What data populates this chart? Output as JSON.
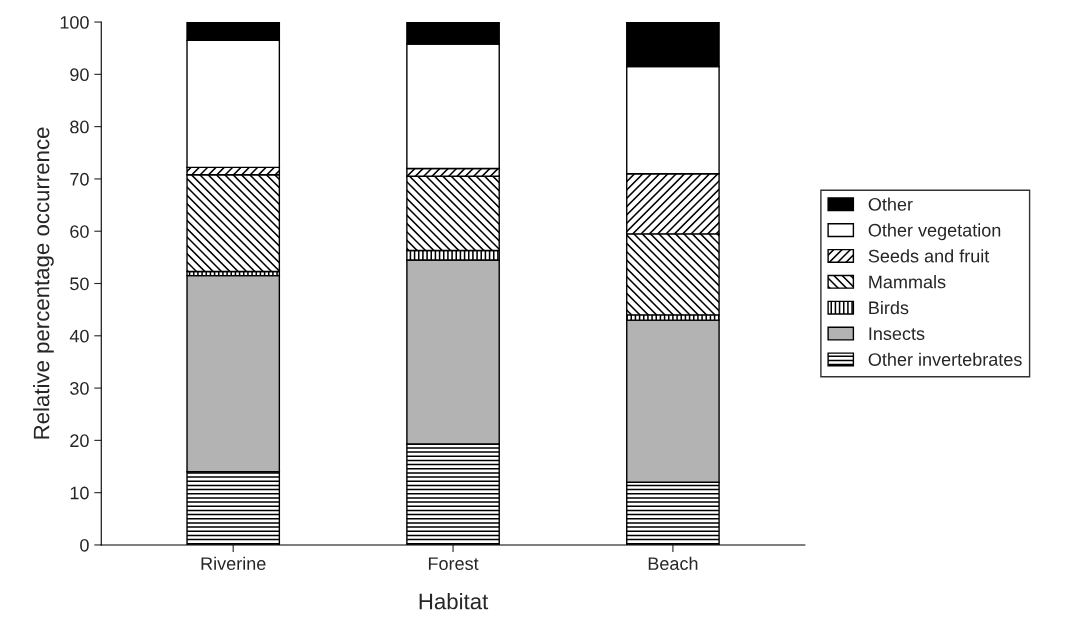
{
  "chart_data": {
    "type": "bar",
    "stacked": true,
    "xlabel": "Habitat",
    "ylabel": "Relative percentage occurrence",
    "categories": [
      "Riverine",
      "Forest",
      "Beach"
    ],
    "series": [
      {
        "name": "Other invertebrates",
        "color": "#000000",
        "values": [
          14,
          19.3,
          12
        ]
      },
      {
        "name": "Insects",
        "color": "#b3b3b3",
        "values": [
          37.5,
          35.2,
          31
        ]
      },
      {
        "name": "Birds",
        "color": "#000000",
        "values": [
          0.8,
          1.8,
          1
        ]
      },
      {
        "name": "Mammals",
        "color": "#000000",
        "values": [
          18.5,
          14.2,
          15.5
        ]
      },
      {
        "name": "Seeds and fruit",
        "color": "#000000",
        "values": [
          1.4,
          1.5,
          11.5
        ]
      },
      {
        "name": "Other vegetation",
        "color": "#ffffff",
        "values": [
          24.3,
          23.8,
          20.5
        ]
      },
      {
        "name": "Other",
        "color": "#000000",
        "values": [
          3.5,
          4.2,
          8.5
        ]
      }
    ],
    "ylim": [
      0,
      100
    ],
    "yticks": [
      0,
      10,
      20,
      30,
      40,
      50,
      60,
      70,
      80,
      90,
      100
    ],
    "grid": false,
    "legend": "right"
  }
}
